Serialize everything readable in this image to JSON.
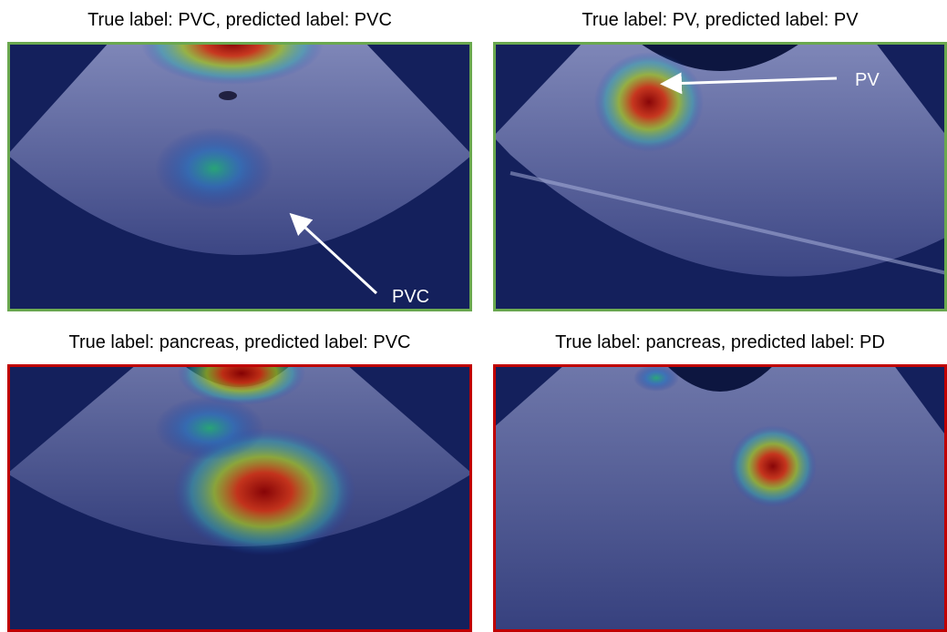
{
  "panels": [
    {
      "title": "True label: PVC, predicted label: PVC",
      "annotation": "PVC"
    },
    {
      "title": "True label: PV, predicted label: PV",
      "annotation": "PV"
    },
    {
      "title": "True label: pancreas, predicted label: PVC"
    },
    {
      "title": "True label: pancreas, predicted label: PD"
    }
  ]
}
